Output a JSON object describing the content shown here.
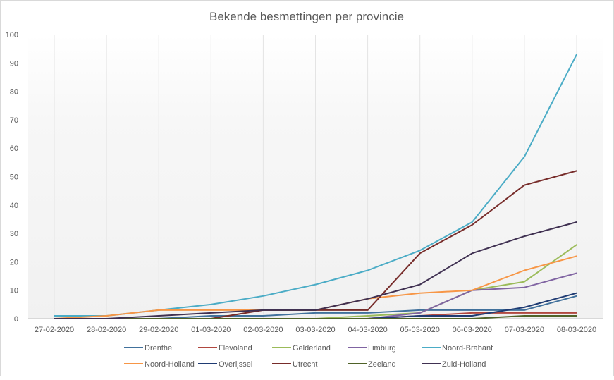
{
  "chart_data": {
    "type": "line",
    "title": "Bekende besmettingen per provincie",
    "xlabel": "",
    "ylabel": "",
    "ylim": [
      0,
      100
    ],
    "y_ticks": [
      0,
      10,
      20,
      30,
      40,
      50,
      60,
      70,
      80,
      90,
      100
    ],
    "grid": "vertical",
    "legend_position": "bottom",
    "categories": [
      "27-02-2020",
      "28-02-2020",
      "29-02-2020",
      "01-03-2020",
      "02-03-2020",
      "03-03-2020",
      "04-03-2020",
      "05-03-2020",
      "06-03-2020",
      "07-03-2020",
      "08-03-2020"
    ],
    "series": [
      {
        "name": "Drenthe",
        "color": "#41719c",
        "values": [
          0,
          0,
          0,
          1,
          1,
          2,
          2,
          3,
          3,
          3,
          8
        ]
      },
      {
        "name": "Flevoland",
        "color": "#b0473f",
        "values": [
          0,
          0,
          0,
          0,
          0,
          0,
          0,
          1,
          2,
          2,
          2
        ]
      },
      {
        "name": "Gelderland",
        "color": "#9bbb59",
        "values": [
          0,
          0,
          0,
          0,
          0,
          0,
          1,
          2,
          10,
          13,
          26
        ]
      },
      {
        "name": "Limburg",
        "color": "#8064a2",
        "values": [
          0,
          0,
          0,
          0,
          0,
          0,
          0,
          2,
          10,
          11,
          16
        ]
      },
      {
        "name": "Noord-Brabant",
        "color": "#4bacc6",
        "values": [
          1,
          1,
          3,
          5,
          8,
          12,
          17,
          24,
          34,
          57,
          93
        ]
      },
      {
        "name": "Noord-Holland",
        "color": "#f79646",
        "values": [
          0,
          1,
          3,
          3,
          3,
          3,
          7,
          9,
          10,
          17,
          22
        ]
      },
      {
        "name": "Overijssel",
        "color": "#1f3b73",
        "values": [
          0,
          0,
          0,
          0,
          0,
          0,
          0,
          1,
          1,
          4,
          9
        ]
      },
      {
        "name": "Utrecht",
        "color": "#772c2a",
        "values": [
          0,
          0,
          0,
          0,
          3,
          3,
          3,
          23,
          33,
          47,
          52
        ]
      },
      {
        "name": "Zeeland",
        "color": "#4f6228",
        "values": [
          0,
          0,
          0,
          0,
          0,
          0,
          0,
          0,
          0,
          1,
          1
        ]
      },
      {
        "name": "Zuid-Holland",
        "color": "#403152",
        "values": [
          0,
          0,
          1,
          2,
          3,
          3,
          7,
          12,
          23,
          29,
          34
        ]
      }
    ]
  }
}
